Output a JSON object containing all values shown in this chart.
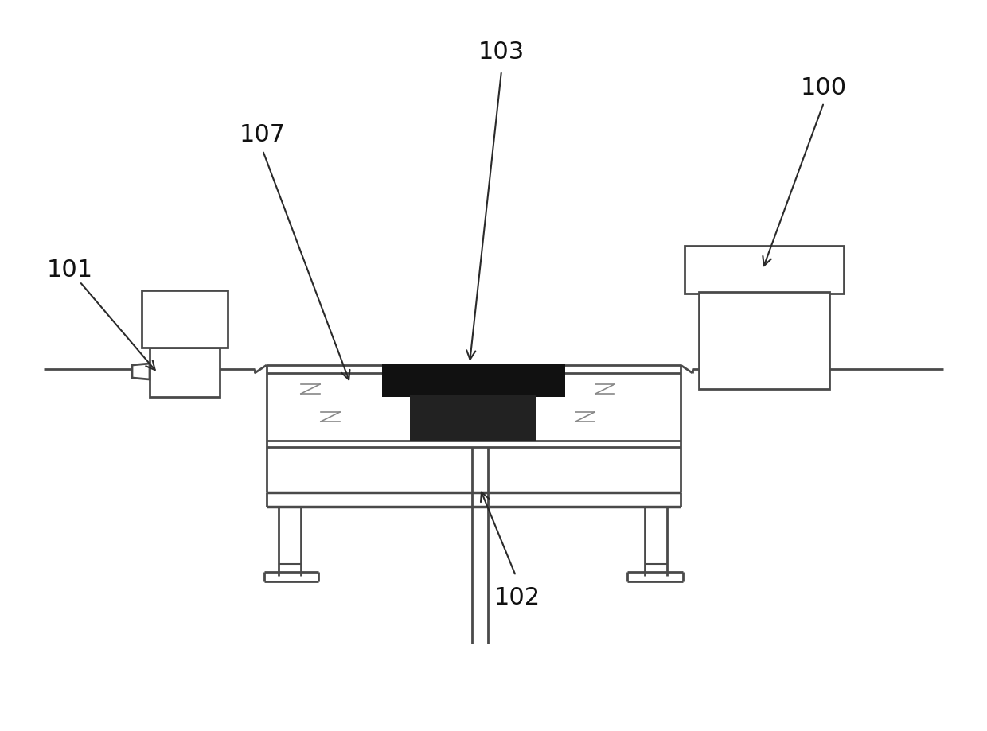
{
  "bg_color": "#ffffff",
  "line_color": "#4a4a4a",
  "dark_color": "#111111",
  "label_fontsize": 22,
  "figsize": [
    12.4,
    9.2
  ],
  "dpi": 100
}
